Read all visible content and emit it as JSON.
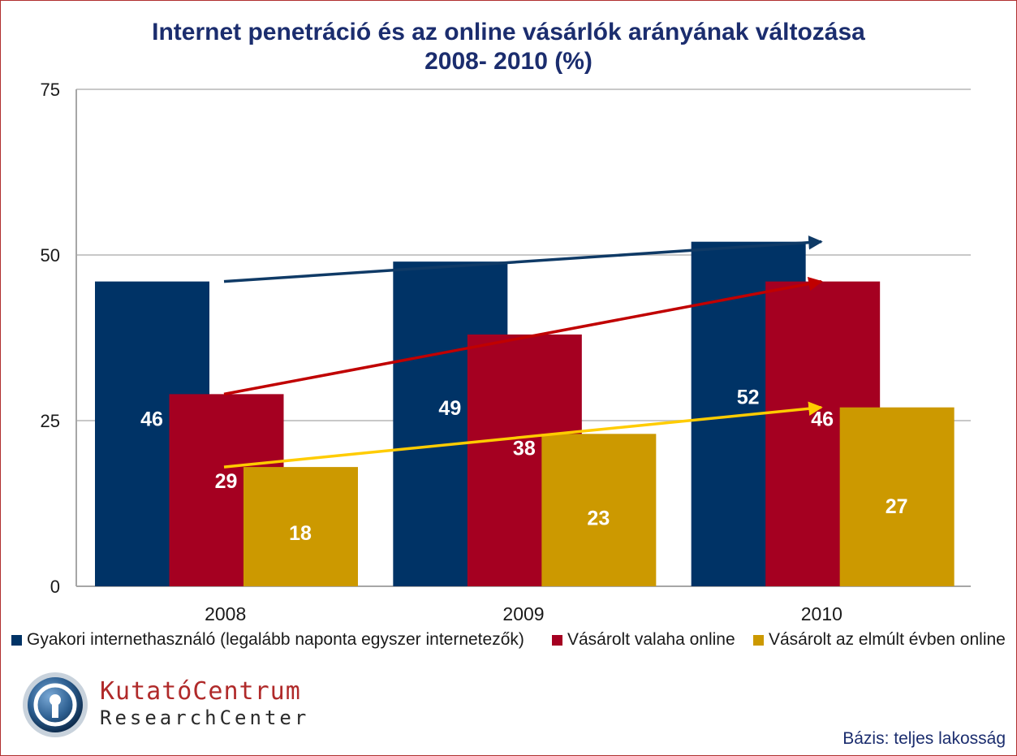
{
  "header": {
    "title_line1": "Internet penetráció és az online vásárlók arányának változása",
    "title_line2": "2008- 2010 (%)"
  },
  "chart_data": {
    "type": "bar",
    "title": "Internet penetráció és az online vásárlók arányának változása 2008- 2010 (%)",
    "categories": [
      "2008",
      "2009",
      "2010"
    ],
    "series": [
      {
        "name": "Gyakori internethasználó (legalább naponta egyszer internetezők)",
        "values": [
          46,
          49,
          52
        ],
        "color": "#003366"
      },
      {
        "name": "Vásárolt valaha online",
        "values": [
          29,
          38,
          46
        ],
        "color": "#a50021"
      },
      {
        "name": "Vásárolt az elmúlt évben online",
        "values": [
          18,
          23,
          27
        ],
        "color": "#cc9900"
      }
    ],
    "trend_arrow_colors": [
      "#0f3a66",
      "#c00000",
      "#ffcc00"
    ],
    "ylim": [
      0,
      75
    ],
    "yticks": [
      0,
      25,
      50,
      75
    ],
    "grid": true,
    "legend_position": "bottom",
    "xlabel": "",
    "ylabel": ""
  },
  "legend": [
    {
      "label": "Gyakori internethasználó (legalább naponta egyszer internetezők)",
      "color": "#003366"
    },
    {
      "label": "Vásárolt valaha online",
      "color": "#a50021"
    },
    {
      "label": "Vásárolt az elmúlt évben online",
      "color": "#cc9900"
    }
  ],
  "logo": {
    "name_line1": "KutatóCentrum",
    "name_line2": "ResearchCenter"
  },
  "footnote": "Bázis: teljes lakosság"
}
